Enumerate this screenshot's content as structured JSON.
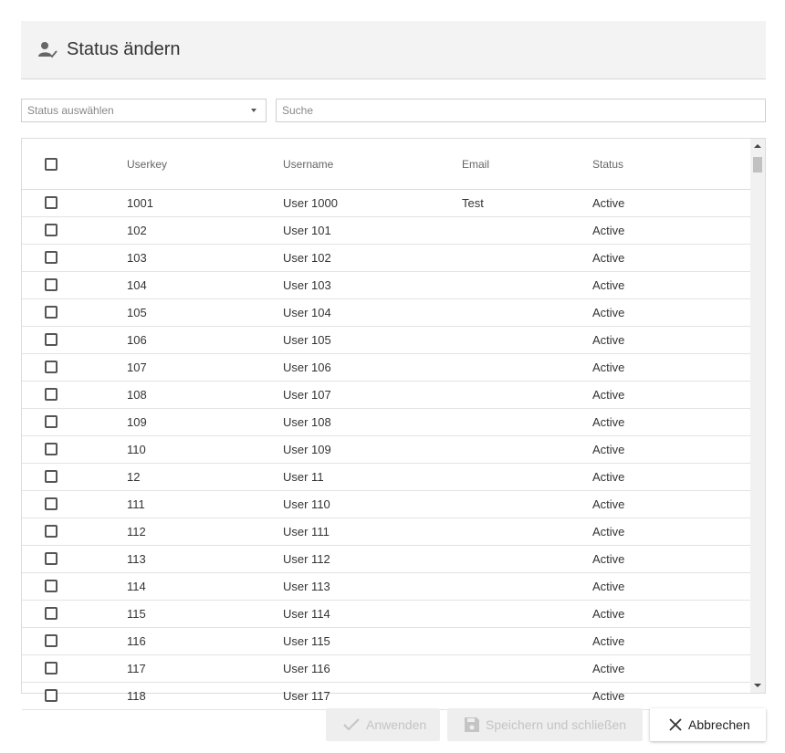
{
  "dialog": {
    "title": "Status ändern"
  },
  "filters": {
    "status_placeholder": "Status auswählen",
    "search_placeholder": "Suche"
  },
  "table": {
    "headers": {
      "userkey": "Userkey",
      "username": "Username",
      "email": "Email",
      "status": "Status"
    },
    "rows": [
      {
        "userkey": "1001",
        "username": "User 1000",
        "email": "Test",
        "status": "Active"
      },
      {
        "userkey": "102",
        "username": "User 101",
        "email": "",
        "status": "Active"
      },
      {
        "userkey": "103",
        "username": "User 102",
        "email": "",
        "status": "Active"
      },
      {
        "userkey": "104",
        "username": "User 103",
        "email": "",
        "status": "Active"
      },
      {
        "userkey": "105",
        "username": "User 104",
        "email": "",
        "status": "Active"
      },
      {
        "userkey": "106",
        "username": "User 105",
        "email": "",
        "status": "Active"
      },
      {
        "userkey": "107",
        "username": "User 106",
        "email": "",
        "status": "Active"
      },
      {
        "userkey": "108",
        "username": "User 107",
        "email": "",
        "status": "Active"
      },
      {
        "userkey": "109",
        "username": "User 108",
        "email": "",
        "status": "Active"
      },
      {
        "userkey": "110",
        "username": "User 109",
        "email": "",
        "status": "Active"
      },
      {
        "userkey": "12",
        "username": "User 11",
        "email": "",
        "status": "Active"
      },
      {
        "userkey": "111",
        "username": "User 110",
        "email": "",
        "status": "Active"
      },
      {
        "userkey": "112",
        "username": "User 111",
        "email": "",
        "status": "Active"
      },
      {
        "userkey": "113",
        "username": "User 112",
        "email": "",
        "status": "Active"
      },
      {
        "userkey": "114",
        "username": "User 113",
        "email": "",
        "status": "Active"
      },
      {
        "userkey": "115",
        "username": "User 114",
        "email": "",
        "status": "Active"
      },
      {
        "userkey": "116",
        "username": "User 115",
        "email": "",
        "status": "Active"
      },
      {
        "userkey": "117",
        "username": "User 116",
        "email": "",
        "status": "Active"
      },
      {
        "userkey": "118",
        "username": "User 117",
        "email": "",
        "status": "Active"
      }
    ]
  },
  "buttons": {
    "apply": "Anwenden",
    "save_close": "Speichern und schließen",
    "cancel": "Abbrechen"
  },
  "icons": {
    "header": "user-check-icon",
    "apply": "check-icon",
    "save": "floppy-disk-icon",
    "cancel": "close-icon",
    "dropdown": "caret-down-icon"
  },
  "colors": {
    "header_bg": "#f3f3f3",
    "disabled_text": "#c4c4c4",
    "disabled_bg": "#eeeeee"
  }
}
